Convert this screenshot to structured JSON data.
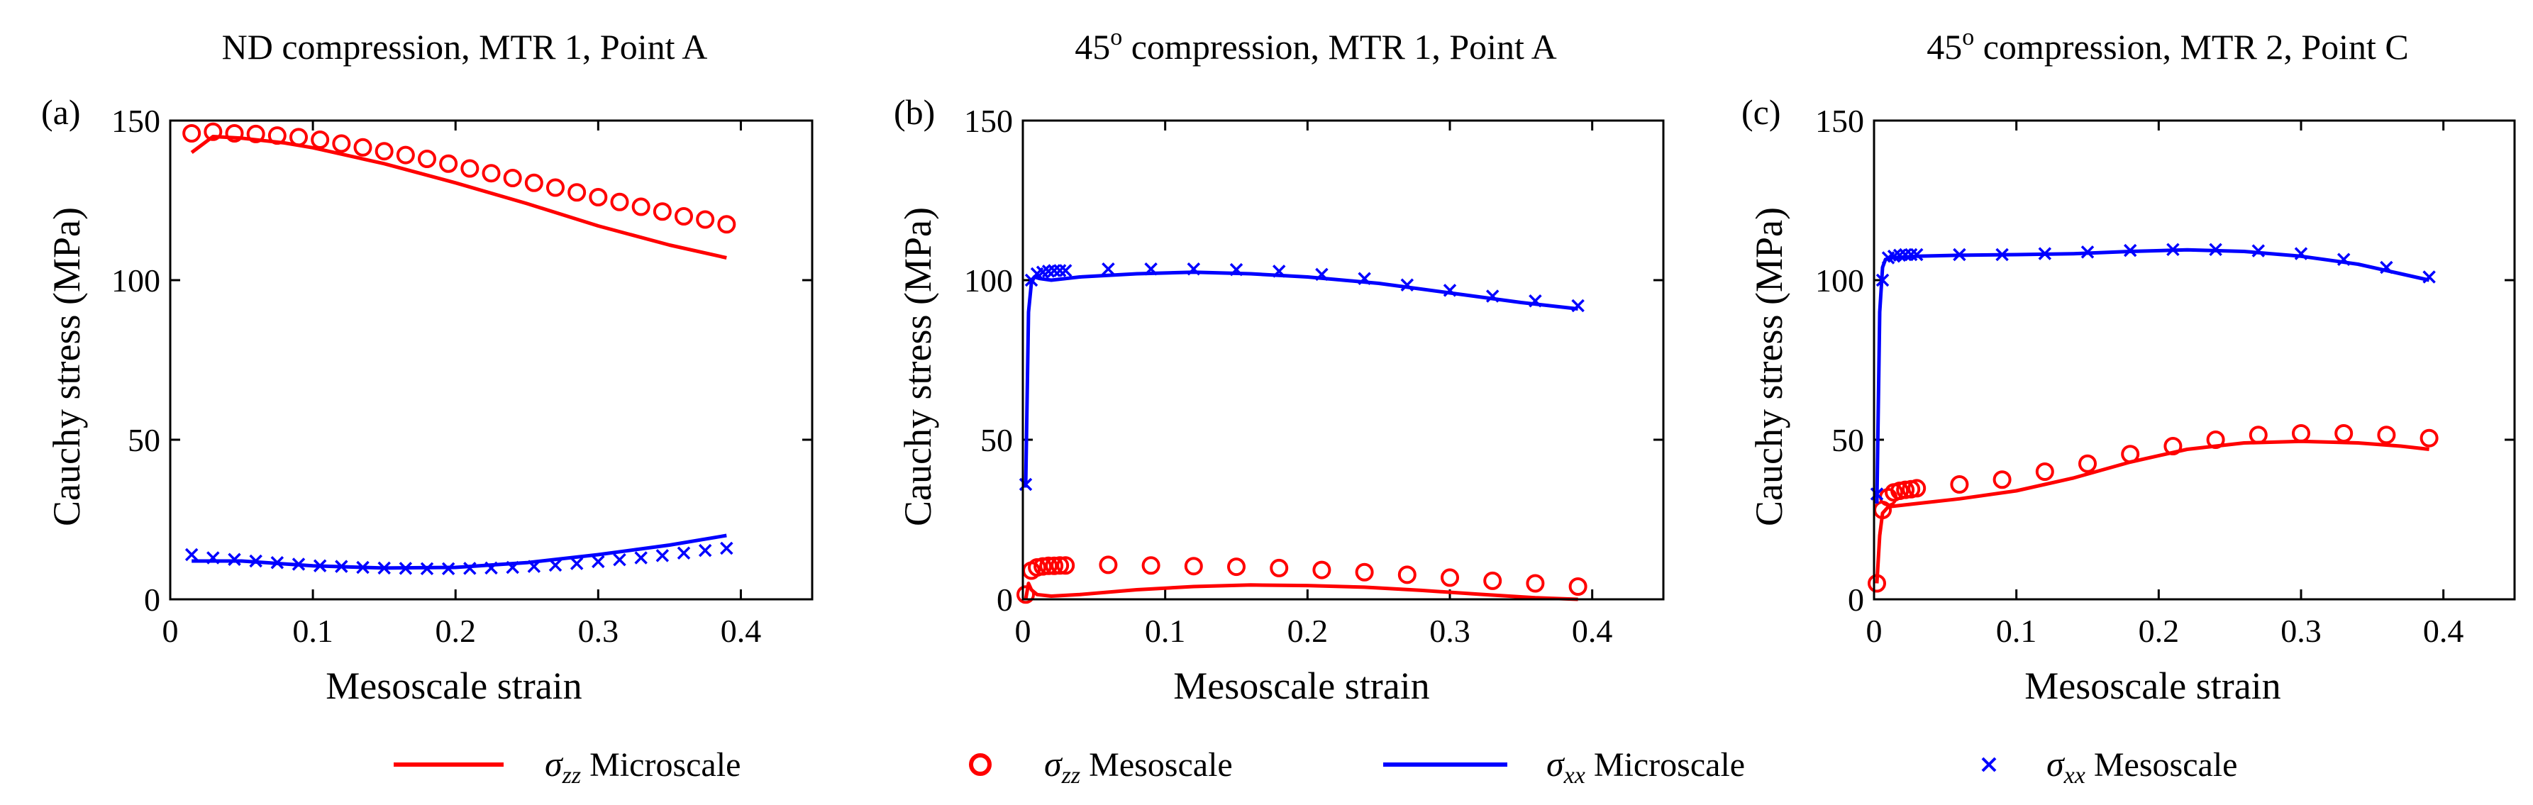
{
  "colors": {
    "zz": "#ff0000",
    "xx": "#0000ff",
    "axis": "#000000"
  },
  "legend": [
    {
      "symbol": "σ",
      "subscript": "zz",
      "label": "Microscale",
      "style": "line",
      "color_key": "zz"
    },
    {
      "symbol": "σ",
      "subscript": "zz",
      "label": "Mesoscale",
      "style": "circle",
      "color_key": "zz"
    },
    {
      "symbol": "σ",
      "subscript": "xx",
      "label": "Microscale",
      "style": "line",
      "color_key": "xx"
    },
    {
      "symbol": "σ",
      "subscript": "xx",
      "label": "Mesoscale",
      "style": "cross",
      "color_key": "xx"
    }
  ],
  "chart_data": [
    {
      "type": "line",
      "panel_label": "(a)",
      "title": "ND compression, MTR 1, Point A",
      "xlabel": "Mesoscale strain",
      "ylabel": "Cauchy stress (MPa)",
      "xlim": [
        0,
        0.45
      ],
      "ylim": [
        0,
        150
      ],
      "xticks": [
        0,
        0.1,
        0.2,
        0.3,
        0.4
      ],
      "xtick_labels": [
        "0",
        "0.1",
        "0.2",
        "0.3",
        "0.4"
      ],
      "yticks": [
        0,
        50,
        100,
        150
      ],
      "ytick_labels": [
        "0",
        "50",
        "100",
        "150"
      ],
      "series": [
        {
          "name": "σzz Microscale",
          "marker": "line",
          "color_key": "zz",
          "x": [
            0.015,
            0.03,
            0.05,
            0.08,
            0.1,
            0.15,
            0.2,
            0.25,
            0.3,
            0.35,
            0.39
          ],
          "y": [
            140,
            145,
            144.5,
            143,
            141.5,
            136.5,
            130.5,
            124,
            117,
            111,
            107
          ]
        },
        {
          "name": "σzz Mesoscale",
          "marker": "circle",
          "color_key": "zz",
          "x": [
            0.015,
            0.03,
            0.045,
            0.06,
            0.075,
            0.09,
            0.105,
            0.12,
            0.135,
            0.15,
            0.165,
            0.18,
            0.195,
            0.21,
            0.225,
            0.24,
            0.255,
            0.27,
            0.285,
            0.3,
            0.315,
            0.33,
            0.345,
            0.36,
            0.375,
            0.39
          ],
          "y": [
            146,
            146.5,
            146,
            145.8,
            145.3,
            144.8,
            144,
            142.8,
            141.6,
            140.4,
            139.2,
            138,
            136.5,
            135,
            133.5,
            132,
            130.5,
            129,
            127.5,
            126,
            124.5,
            123,
            121.5,
            120,
            119,
            117.5
          ]
        },
        {
          "name": "σxx Microscale",
          "marker": "line",
          "color_key": "xx",
          "x": [
            0.015,
            0.05,
            0.1,
            0.15,
            0.2,
            0.25,
            0.3,
            0.35,
            0.39
          ],
          "y": [
            12,
            12,
            10.5,
            9.8,
            10,
            11.5,
            14,
            17,
            20
          ]
        },
        {
          "name": "σxx Mesoscale",
          "marker": "cross",
          "color_key": "xx",
          "x": [
            0.015,
            0.03,
            0.045,
            0.06,
            0.075,
            0.09,
            0.105,
            0.12,
            0.135,
            0.15,
            0.165,
            0.18,
            0.195,
            0.21,
            0.225,
            0.24,
            0.255,
            0.27,
            0.285,
            0.3,
            0.315,
            0.33,
            0.345,
            0.36,
            0.375,
            0.39
          ],
          "y": [
            14,
            13,
            12.5,
            12,
            11.5,
            11,
            10.5,
            10.3,
            10,
            9.8,
            9.7,
            9.6,
            9.6,
            9.7,
            9.8,
            10,
            10.3,
            10.7,
            11.2,
            11.8,
            12.4,
            13,
            13.7,
            14.5,
            15.3,
            16
          ]
        }
      ]
    },
    {
      "type": "line",
      "panel_label": "(b)",
      "title_main": "45",
      "title_sup": "o",
      "title_rest": " compression, MTR 1, Point A",
      "xlabel": "Mesoscale strain",
      "ylabel": "Cauchy stress (MPa)",
      "xlim": [
        0,
        0.45
      ],
      "ylim": [
        0,
        150
      ],
      "xticks": [
        0,
        0.1,
        0.2,
        0.3,
        0.4
      ],
      "xtick_labels": [
        "0",
        "0.1",
        "0.2",
        "0.3",
        "0.4"
      ],
      "yticks": [
        0,
        50,
        100,
        150
      ],
      "ytick_labels": [
        "0",
        "50",
        "100",
        "150"
      ],
      "series": [
        {
          "name": "σzz Microscale",
          "marker": "line",
          "color_key": "zz",
          "x": [
            0.002,
            0.004,
            0.006,
            0.01,
            0.02,
            0.04,
            0.08,
            0.12,
            0.16,
            0.2,
            0.24,
            0.28,
            0.32,
            0.36,
            0.39
          ],
          "y": [
            0,
            5,
            3,
            1.5,
            1,
            1.5,
            3,
            4,
            4.5,
            4.3,
            3.8,
            2.8,
            1.6,
            0.5,
            0
          ]
        },
        {
          "name": "σzz Mesoscale",
          "marker": "circle",
          "color_key": "zz",
          "x": [
            0.002,
            0.006,
            0.01,
            0.014,
            0.018,
            0.022,
            0.026,
            0.03,
            0.06,
            0.09,
            0.12,
            0.15,
            0.18,
            0.21,
            0.24,
            0.27,
            0.3,
            0.33,
            0.36,
            0.39
          ],
          "y": [
            1.5,
            9,
            10,
            10.3,
            10.5,
            10.5,
            10.6,
            10.6,
            10.8,
            10.6,
            10.4,
            10.2,
            9.8,
            9.2,
            8.5,
            7.7,
            6.8,
            5.8,
            5,
            4
          ]
        },
        {
          "name": "σxx Microscale",
          "marker": "line",
          "color_key": "xx",
          "x": [
            0.002,
            0.004,
            0.006,
            0.008,
            0.012,
            0.02,
            0.04,
            0.08,
            0.12,
            0.16,
            0.2,
            0.25,
            0.3,
            0.35,
            0.39
          ],
          "y": [
            35,
            90,
            99,
            101,
            100.5,
            100,
            101,
            102,
            102.5,
            102,
            101,
            99,
            96,
            93,
            91
          ]
        },
        {
          "name": "σxx Mesoscale",
          "marker": "cross",
          "color_key": "xx",
          "x": [
            0.002,
            0.006,
            0.01,
            0.014,
            0.018,
            0.022,
            0.026,
            0.03,
            0.06,
            0.09,
            0.12,
            0.15,
            0.18,
            0.21,
            0.24,
            0.27,
            0.3,
            0.33,
            0.36,
            0.39
          ],
          "y": [
            36,
            100,
            102,
            102.5,
            102.8,
            103,
            103,
            103,
            103.5,
            103.5,
            103.5,
            103.3,
            102.8,
            101.8,
            100.5,
            98.5,
            96.8,
            95,
            93.5,
            92
          ]
        }
      ]
    },
    {
      "type": "line",
      "panel_label": "(c)",
      "title_main": "45",
      "title_sup": "o",
      "title_rest": " compression, MTR 2, Point C",
      "xlabel": "Mesoscale strain",
      "ylabel": "Cauchy stress (MPa)",
      "xlim": [
        0,
        0.45
      ],
      "ylim": [
        0,
        150
      ],
      "xticks": [
        0,
        0.1,
        0.2,
        0.3,
        0.4
      ],
      "xtick_labels": [
        "0",
        "0.1",
        "0.2",
        "0.3",
        "0.4"
      ],
      "yticks": [
        0,
        50,
        100,
        150
      ],
      "ytick_labels": [
        "0",
        "50",
        "100",
        "150"
      ],
      "series": [
        {
          "name": "σzz Microscale",
          "marker": "line",
          "color_key": "zz",
          "x": [
            0.002,
            0.004,
            0.006,
            0.01,
            0.03,
            0.06,
            0.1,
            0.14,
            0.18,
            0.22,
            0.26,
            0.3,
            0.34,
            0.37,
            0.39
          ],
          "y": [
            5,
            20,
            27,
            29,
            30,
            31.5,
            34,
            38,
            43,
            47,
            49,
            49.5,
            49,
            48,
            47
          ]
        },
        {
          "name": "σzz Mesoscale",
          "marker": "circle",
          "color_key": "zz",
          "x": [
            0.002,
            0.006,
            0.01,
            0.014,
            0.018,
            0.022,
            0.026,
            0.03,
            0.06,
            0.09,
            0.12,
            0.15,
            0.18,
            0.21,
            0.24,
            0.27,
            0.3,
            0.33,
            0.36,
            0.39
          ],
          "y": [
            5,
            28,
            32,
            33.5,
            34,
            34.3,
            34.5,
            34.8,
            36,
            37.5,
            40,
            42.5,
            45.5,
            48,
            50,
            51.5,
            52,
            52,
            51.5,
            50.5
          ]
        },
        {
          "name": "σxx Microscale",
          "marker": "line",
          "color_key": "xx",
          "x": [
            0.002,
            0.004,
            0.006,
            0.008,
            0.012,
            0.03,
            0.06,
            0.1,
            0.14,
            0.18,
            0.22,
            0.26,
            0.3,
            0.34,
            0.37,
            0.39
          ],
          "y": [
            30,
            90,
            104,
            106.5,
            107,
            107.5,
            107.8,
            108,
            108.3,
            109,
            109.5,
            109,
            107.5,
            105,
            102,
            100
          ]
        },
        {
          "name": "σxx Mesoscale",
          "marker": "cross",
          "color_key": "xx",
          "x": [
            0.002,
            0.006,
            0.01,
            0.014,
            0.018,
            0.022,
            0.026,
            0.03,
            0.06,
            0.09,
            0.12,
            0.15,
            0.18,
            0.21,
            0.24,
            0.27,
            0.3,
            0.33,
            0.36,
            0.39
          ],
          "y": [
            33,
            100,
            107,
            107.5,
            107.8,
            108,
            108,
            108,
            108,
            108,
            108.3,
            108.8,
            109.3,
            109.6,
            109.6,
            109.2,
            108.3,
            106.5,
            104,
            101
          ]
        }
      ]
    }
  ]
}
